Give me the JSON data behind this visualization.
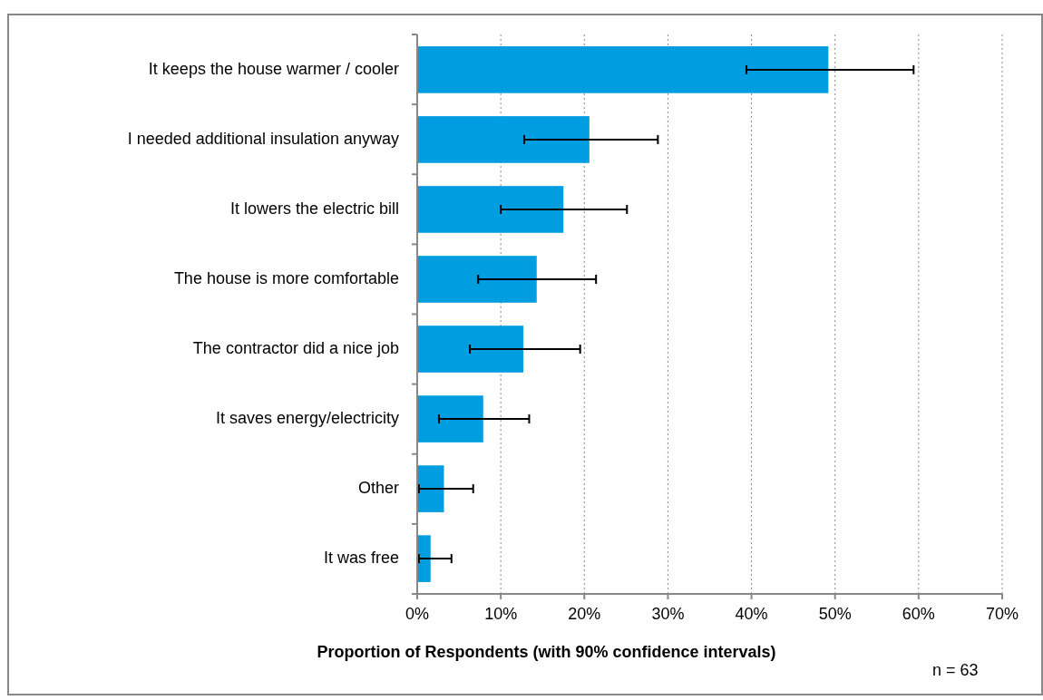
{
  "chart_data": {
    "type": "bar",
    "orientation": "horizontal",
    "xlabel": "Proportion of Respondents (with 90% confidence intervals)",
    "categories": [
      "It keeps the house warmer / cooler",
      "I needed additional insulation anyway",
      "It lowers the electric bill",
      "The house is more comfortable",
      "The contractor did a nice job",
      "It saves energy/electricity",
      "Other",
      "It was free"
    ],
    "values": [
      49.2,
      20.6,
      17.5,
      14.3,
      12.7,
      7.9,
      3.2,
      1.6
    ],
    "color": "#009de0",
    "errors": [
      [
        39.4,
        59.4
      ],
      [
        12.8,
        28.8
      ],
      [
        10.0,
        25.1
      ],
      [
        7.3,
        21.4
      ],
      [
        6.3,
        19.5
      ],
      [
        2.6,
        13.4
      ],
      [
        0.2,
        6.7
      ],
      [
        0.2,
        4.1
      ]
    ],
    "xlim": [
      0,
      70
    ],
    "xticks": [
      {
        "value": 0,
        "label": "0%"
      },
      {
        "value": 10,
        "label": "10%"
      },
      {
        "value": 20,
        "label": "20%"
      },
      {
        "value": 30,
        "label": "30%"
      },
      {
        "value": 40,
        "label": "40%"
      },
      {
        "value": 50,
        "label": "50%"
      },
      {
        "value": 60,
        "label": "60%"
      },
      {
        "value": 70,
        "label": "70%"
      }
    ],
    "grid": "x",
    "annotations": [
      "n = 63"
    ]
  }
}
